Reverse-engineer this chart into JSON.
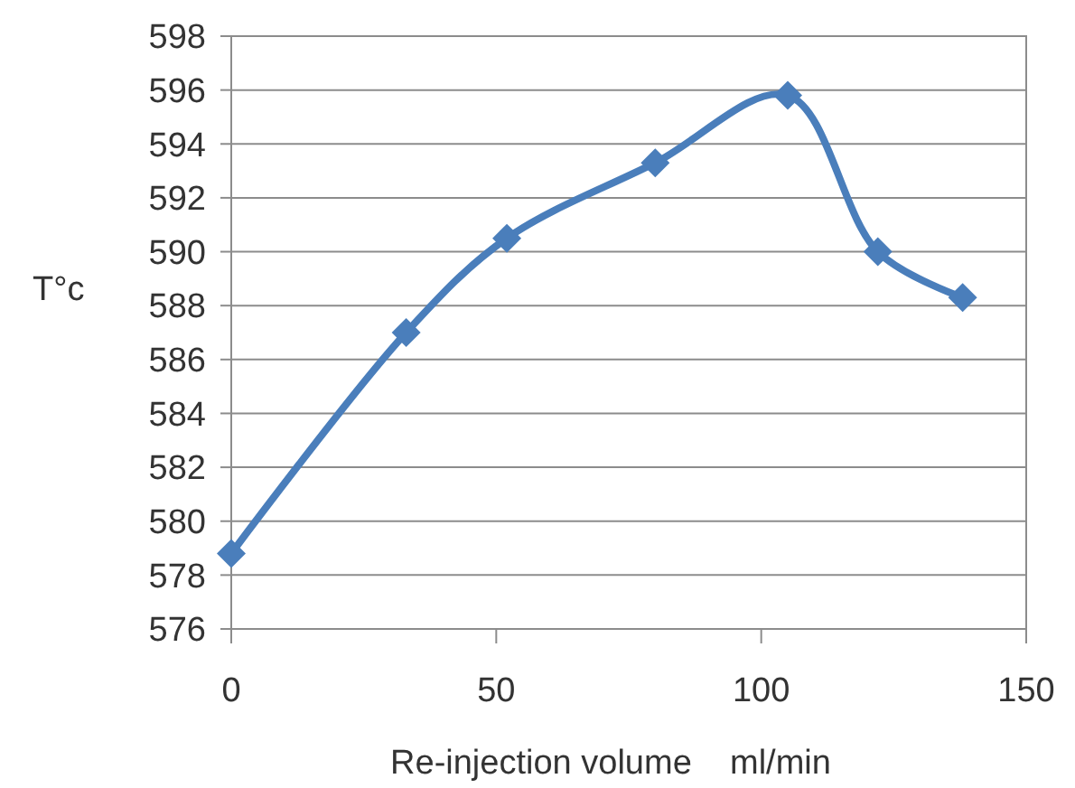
{
  "chart_data": {
    "type": "line",
    "xlabel": "Re-injection volume    ml/min",
    "ylabel": "T°c",
    "x": [
      0,
      33,
      52,
      80,
      105,
      122,
      138
    ],
    "series": [
      {
        "color": "#4a7ebb",
        "values": [
          578.8,
          587.0,
          590.5,
          593.3,
          595.8,
          590.0,
          588.3
        ]
      }
    ],
    "xlim": [
      0,
      150
    ],
    "xticks": [
      0,
      50,
      100,
      150
    ],
    "ylim": [
      576,
      598
    ],
    "yticks": [
      576,
      578,
      580,
      582,
      584,
      586,
      588,
      590,
      592,
      594,
      596,
      598
    ],
    "grid": "y",
    "marker": "diamond",
    "line_style": "solid"
  }
}
